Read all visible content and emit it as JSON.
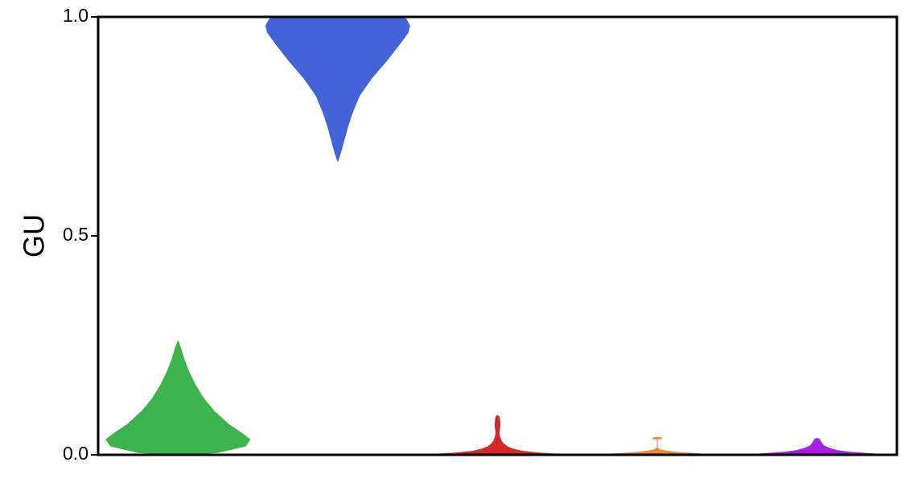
{
  "chart_data": {
    "type": "violin",
    "title": "",
    "xlabel": "",
    "ylabel": "GU",
    "ylim": [
      0,
      1
    ],
    "yticks": [
      0.0,
      0.5,
      1.0
    ],
    "ytick_labels": [
      "0.0",
      "0.5",
      "1.0"
    ],
    "grid": false,
    "legend": "none",
    "series": [
      {
        "color": "#3cb44b",
        "min": 0.0,
        "max": 0.26,
        "profile": [
          [
            0.0,
            0.03
          ],
          [
            0.005,
            0.55
          ],
          [
            0.02,
            0.94
          ],
          [
            0.035,
            1.0
          ],
          [
            0.05,
            0.88
          ],
          [
            0.07,
            0.7
          ],
          [
            0.1,
            0.5
          ],
          [
            0.13,
            0.35
          ],
          [
            0.16,
            0.24
          ],
          [
            0.19,
            0.15
          ],
          [
            0.22,
            0.08
          ],
          [
            0.245,
            0.035
          ],
          [
            0.26,
            0.0
          ]
        ]
      },
      {
        "color": "#4363d8",
        "min": 0.67,
        "max": 1.0,
        "profile": [
          [
            0.67,
            0.0
          ],
          [
            0.69,
            0.04
          ],
          [
            0.72,
            0.09
          ],
          [
            0.75,
            0.14
          ],
          [
            0.78,
            0.2
          ],
          [
            0.82,
            0.3
          ],
          [
            0.86,
            0.47
          ],
          [
            0.9,
            0.68
          ],
          [
            0.94,
            0.87
          ],
          [
            0.965,
            0.98
          ],
          [
            0.98,
            1.0
          ],
          [
            0.995,
            0.95
          ],
          [
            1.0,
            0.9
          ]
        ]
      },
      {
        "color": "#d62728",
        "min": 0.0,
        "max": 0.09,
        "profile": [
          [
            0.0,
            1.0
          ],
          [
            0.004,
            0.6
          ],
          [
            0.008,
            0.35
          ],
          [
            0.013,
            0.22
          ],
          [
            0.018,
            0.14
          ],
          [
            0.024,
            0.09
          ],
          [
            0.032,
            0.05
          ],
          [
            0.042,
            0.03
          ],
          [
            0.05,
            0.02
          ],
          [
            0.06,
            0.03
          ],
          [
            0.07,
            0.035
          ],
          [
            0.08,
            0.03
          ],
          [
            0.087,
            0.02
          ],
          [
            0.09,
            0.0
          ]
        ]
      },
      {
        "color": "#f58231",
        "min": 0.0,
        "max": 0.04,
        "profile": [
          [
            0.0,
            1.0
          ],
          [
            0.002,
            0.6
          ],
          [
            0.006,
            0.25
          ],
          [
            0.009,
            0.12
          ],
          [
            0.012,
            0.03
          ],
          [
            0.016,
            0.0
          ],
          [
            0.036,
            0.0
          ],
          [
            0.037,
            0.06
          ],
          [
            0.039,
            0.05
          ],
          [
            0.04,
            0.0
          ]
        ]
      },
      {
        "color": "#a51ee6",
        "min": 0.0,
        "max": 0.038,
        "profile": [
          [
            0.0,
            1.0
          ],
          [
            0.003,
            0.72
          ],
          [
            0.006,
            0.45
          ],
          [
            0.01,
            0.28
          ],
          [
            0.015,
            0.17
          ],
          [
            0.02,
            0.1
          ],
          [
            0.025,
            0.07
          ],
          [
            0.03,
            0.05
          ],
          [
            0.035,
            0.035
          ],
          [
            0.038,
            0.0
          ]
        ]
      }
    ]
  }
}
